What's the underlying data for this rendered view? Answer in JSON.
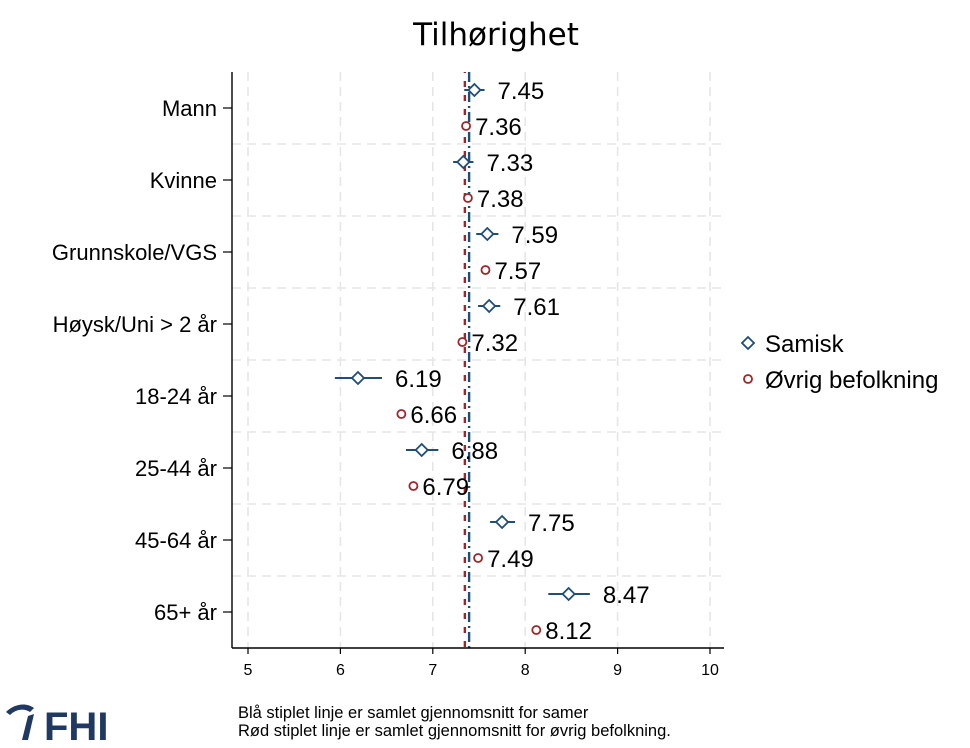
{
  "chart_data": {
    "type": "scatter",
    "title": "Tilhørighet",
    "categories": [
      "Mann",
      "Kvinne",
      "Grunnskole/VGS",
      "Høysk/Uni > 2 år",
      "18-24 år",
      "25-44 år",
      "45-64 år",
      "65+ år"
    ],
    "series": [
      {
        "name": "Samisk",
        "values": [
          7.45,
          7.33,
          7.59,
          7.61,
          6.19,
          6.88,
          7.75,
          8.47
        ],
        "labels": [
          "7.45",
          "7.33",
          "7.59",
          "7.61",
          "6.19",
          "6.88",
          "7.75",
          "8.47"
        ],
        "ci_low": [
          7.34,
          7.22,
          7.47,
          7.49,
          5.94,
          6.71,
          7.62,
          8.25
        ],
        "ci_high": [
          7.56,
          7.44,
          7.71,
          7.73,
          6.45,
          7.06,
          7.89,
          8.7
        ],
        "color": "#1f4e79",
        "marker": "diamond-hollow"
      },
      {
        "name": "Øvrig befolkning",
        "values": [
          7.36,
          7.38,
          7.57,
          7.32,
          6.66,
          6.79,
          7.49,
          8.12
        ],
        "labels": [
          "7.36",
          "7.38",
          "7.57",
          "7.32",
          "6.66",
          "6.79",
          "7.49",
          "8.12"
        ],
        "color": "#a0252b",
        "marker": "circle-hollow"
      }
    ],
    "x_ticks": [
      "5",
      "6",
      "7",
      "8",
      "9",
      "10"
    ],
    "xlim": [
      5,
      10
    ],
    "reference_lines": [
      {
        "x": 7.38,
        "color": "#1f4e79"
      },
      {
        "x": 7.36,
        "color": "#a0252b"
      }
    ],
    "grid": true,
    "legend_position": "right",
    "footnote": [
      "Blå stiplet linje er samlet gjennomsnitt for samer",
      "Rød stiplet linje er samlet gjennomsnitt for øvrig befolkning."
    ]
  },
  "logo": {
    "name": "fhi-logo",
    "text": "FHI",
    "color": "#1f3864"
  }
}
